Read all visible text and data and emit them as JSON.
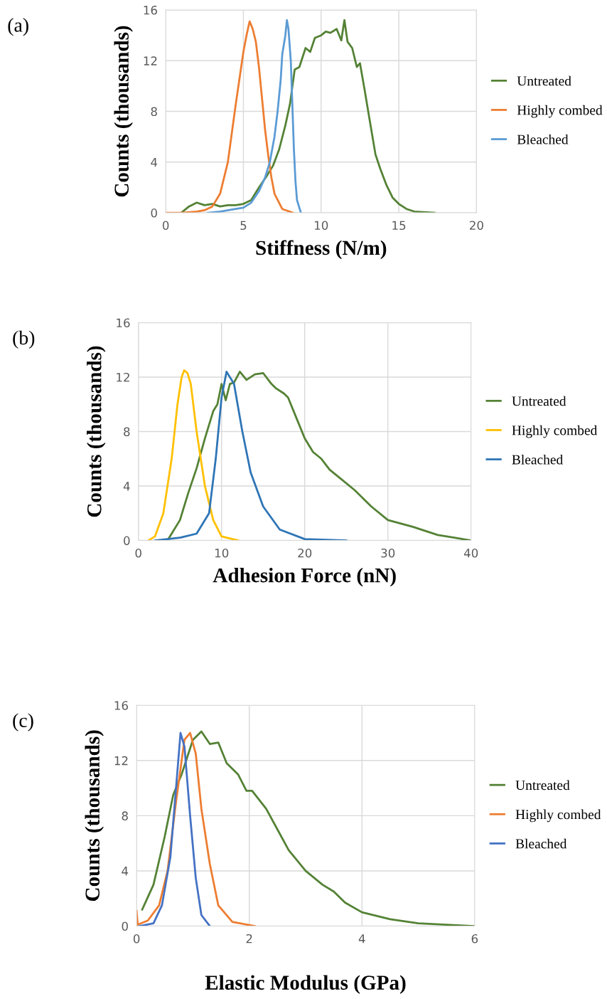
{
  "chart_data": [
    {
      "type": "line",
      "title": "(a)",
      "xlabel": "Stiffness (N/m)",
      "ylabel": "Counts (thousands)",
      "xlim": [
        0,
        20
      ],
      "xticks": [
        0,
        5,
        10,
        15,
        20
      ],
      "ylim": [
        0,
        16
      ],
      "yticks": [
        0,
        4,
        8,
        12,
        16
      ],
      "grid": true,
      "legend": "right",
      "series": [
        {
          "name": "Untreated",
          "color": "#548235",
          "x": [
            1,
            1.5,
            2,
            2.5,
            3,
            3.5,
            4,
            4.5,
            5,
            5.5,
            6,
            6.5,
            6.9,
            7.3,
            7.7,
            8,
            8.3,
            8.6,
            9,
            9.3,
            9.6,
            10,
            10.3,
            10.6,
            11,
            11.3,
            11.5,
            11.7,
            12,
            12.3,
            12.5,
            12.8,
            13.1,
            13.5,
            13.8,
            14.2,
            14.6,
            15,
            15.5,
            16,
            17.3
          ],
          "values": [
            0,
            0.5,
            0.8,
            0.6,
            0.7,
            0.5,
            0.6,
            0.6,
            0.7,
            1,
            2,
            2.9,
            3.7,
            5,
            6.9,
            8.6,
            11.3,
            11.5,
            13,
            12.7,
            13.8,
            14,
            14.3,
            14.2,
            14.5,
            13.6,
            15.2,
            13.5,
            13,
            11.5,
            11.8,
            9.7,
            7.5,
            4.6,
            3.5,
            2.2,
            1.2,
            0.7,
            0.3,
            0.1,
            0
          ]
        },
        {
          "name": "Highly combed",
          "color": "#ed7d31",
          "x": [
            0,
            1,
            2,
            2.5,
            3,
            3.5,
            4,
            4.5,
            5,
            5.2,
            5.4,
            5.6,
            5.8,
            6,
            6.2,
            6.4,
            6.6,
            6.8,
            7,
            7.5,
            8.2
          ],
          "values": [
            0,
            0,
            0.1,
            0.2,
            0.5,
            1.5,
            4,
            8.5,
            12.7,
            14,
            15.1,
            14.5,
            13.5,
            11.5,
            9,
            6.5,
            4.5,
            2.8,
            1.5,
            0.3,
            0
          ]
        },
        {
          "name": "Bleached",
          "color": "#5b9bd5",
          "x": [
            2.7,
            3.5,
            4.5,
            5,
            5.5,
            6,
            6.4,
            6.7,
            7,
            7.2,
            7.4,
            7.5,
            7.7,
            7.8,
            7.9,
            8.05,
            8.15,
            8.25,
            8.35,
            8.45,
            8.7
          ],
          "values": [
            0,
            0.1,
            0.3,
            0.4,
            0.8,
            1.7,
            2.8,
            4,
            6,
            8,
            10.5,
            12.5,
            14,
            15.2,
            14.5,
            12,
            8.5,
            5,
            2.5,
            1,
            0
          ]
        }
      ]
    },
    {
      "type": "line",
      "title": "(b)",
      "xlabel": "Adhesion Force (nN)",
      "ylabel": "Counts (thousands)",
      "xlim": [
        0,
        40
      ],
      "xticks": [
        0,
        10,
        20,
        30,
        40
      ],
      "ylim": [
        0,
        16
      ],
      "yticks": [
        0,
        4,
        8,
        12,
        16
      ],
      "grid": true,
      "legend": "right",
      "series": [
        {
          "name": "Untreated",
          "color": "#548235",
          "x": [
            3.5,
            5,
            6,
            7,
            8,
            9,
            9.5,
            10,
            10.5,
            11,
            11.5,
            12.2,
            13,
            14,
            15,
            16,
            16.5,
            17.5,
            18,
            19,
            20,
            21,
            22,
            23,
            24,
            26,
            28,
            30,
            33,
            36,
            38,
            40
          ],
          "values": [
            0,
            1.5,
            3.5,
            5.3,
            7.5,
            9.5,
            10,
            11.5,
            10.3,
            11.5,
            11.6,
            12.4,
            11.8,
            12.2,
            12.3,
            11.5,
            11.2,
            10.8,
            10.5,
            9,
            7.5,
            6.5,
            6,
            5.2,
            4.7,
            3.7,
            2.5,
            1.5,
            1,
            0.4,
            0.2,
            0
          ]
        },
        {
          "name": "Highly combed",
          "color": "#ffc000",
          "x": [
            1.2,
            2,
            3,
            4,
            4.7,
            5.2,
            5.5,
            5.9,
            6.3,
            7,
            8,
            9,
            10,
            12
          ],
          "values": [
            0,
            0.3,
            2,
            6,
            10,
            12,
            12.5,
            12.3,
            11.5,
            8,
            4,
            1.5,
            0.3,
            0
          ]
        },
        {
          "name": "Bleached",
          "color": "#2e75b6",
          "x": [
            2,
            5,
            7,
            8.5,
            9.3,
            10,
            10.6,
            11.5,
            12.5,
            13.5,
            15,
            17,
            20,
            25
          ],
          "values": [
            0,
            0.2,
            0.5,
            2,
            6,
            10.5,
            12.4,
            11.5,
            8,
            5,
            2.5,
            0.8,
            0.1,
            0
          ]
        }
      ]
    },
    {
      "type": "line",
      "title": "(c)",
      "xlabel": "Elastic Modulus (GPa)",
      "ylabel": "Counts (thousands)",
      "xlim": [
        0,
        6
      ],
      "xticks": [
        0,
        2,
        4,
        6
      ],
      "ylim": [
        0,
        16
      ],
      "yticks": [
        0,
        4,
        8,
        12,
        16
      ],
      "grid": true,
      "legend": "right",
      "series": [
        {
          "name": "Untreated",
          "color": "#548235",
          "x": [
            0.1,
            0.3,
            0.5,
            0.65,
            0.8,
            1.0,
            1.15,
            1.3,
            1.45,
            1.6,
            1.8,
            1.95,
            2.05,
            2.3,
            2.5,
            2.7,
            3,
            3.3,
            3.5,
            3.7,
            4,
            4.5,
            5,
            6
          ],
          "values": [
            1.2,
            3,
            6.5,
            9.5,
            11,
            13.5,
            14.1,
            13.2,
            13.3,
            11.8,
            11,
            9.8,
            9.8,
            8.5,
            7,
            5.5,
            4,
            3,
            2.5,
            1.7,
            1,
            0.5,
            0.2,
            0
          ]
        },
        {
          "name": "Highly combed",
          "color": "#ed7d31",
          "x": [
            0,
            0.02,
            0.2,
            0.4,
            0.55,
            0.7,
            0.85,
            0.95,
            1.05,
            1.15,
            1.3,
            1.45,
            1.7,
            2.1
          ],
          "values": [
            1.1,
            0.1,
            0.4,
            1.5,
            4,
            9,
            13.5,
            14,
            12.5,
            8.5,
            4.5,
            1.5,
            0.3,
            0
          ]
        },
        {
          "name": "Bleached",
          "color": "#4472c4",
          "x": [
            0.05,
            0.3,
            0.45,
            0.6,
            0.7,
            0.78,
            0.85,
            0.95,
            1.05,
            1.15,
            1.3
          ],
          "values": [
            0,
            0.2,
            1.5,
            5,
            10,
            14,
            13,
            8,
            3.5,
            0.8,
            0
          ]
        }
      ]
    }
  ]
}
